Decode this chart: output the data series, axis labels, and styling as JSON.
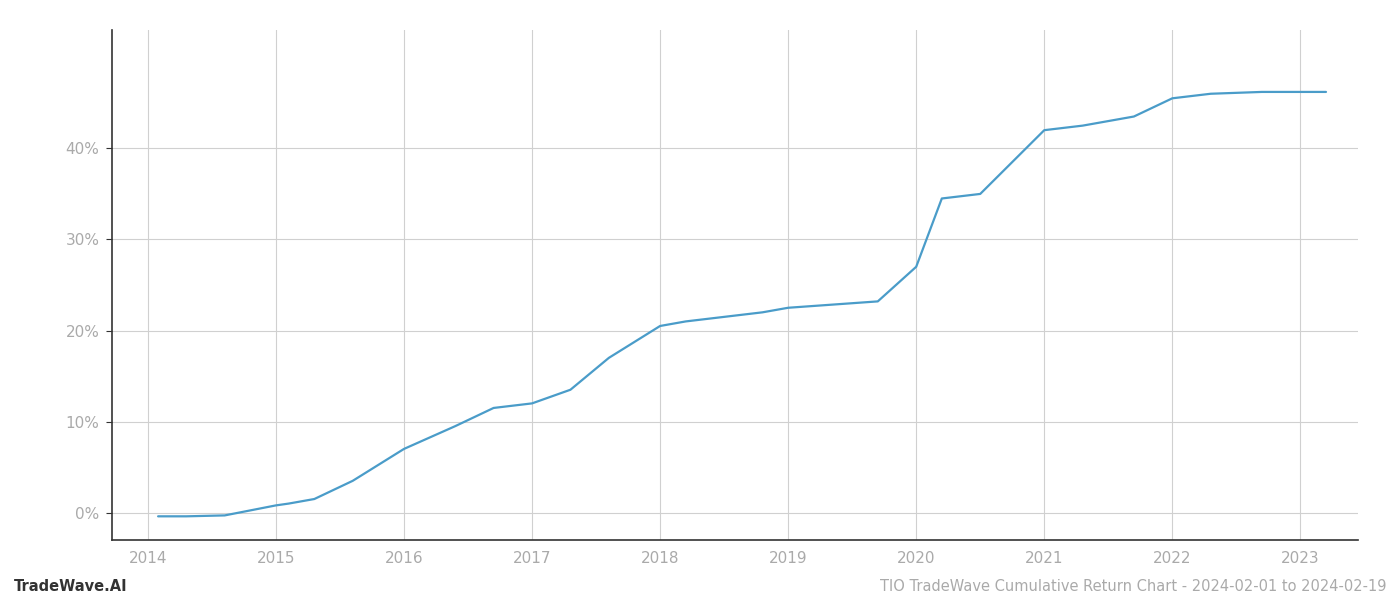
{
  "x_years": [
    2014.08,
    2014.3,
    2014.6,
    2015.0,
    2015.1,
    2015.3,
    2015.6,
    2016.0,
    2016.4,
    2016.7,
    2017.0,
    2017.3,
    2017.6,
    2018.0,
    2018.2,
    2018.5,
    2018.8,
    2019.0,
    2019.3,
    2019.5,
    2019.7,
    2020.0,
    2020.2,
    2020.5,
    2021.0,
    2021.3,
    2021.7,
    2022.0,
    2022.3,
    2022.7,
    2023.0,
    2023.2
  ],
  "y_values": [
    -0.4,
    -0.4,
    -0.3,
    0.8,
    1.0,
    1.5,
    3.5,
    7.0,
    9.5,
    11.5,
    12.0,
    13.5,
    17.0,
    20.5,
    21.0,
    21.5,
    22.0,
    22.5,
    22.8,
    23.0,
    23.2,
    27.0,
    34.5,
    35.0,
    42.0,
    42.5,
    43.5,
    45.5,
    46.0,
    46.2,
    46.2,
    46.2
  ],
  "line_color": "#4a9cc9",
  "line_width": 1.6,
  "background_color": "#ffffff",
  "grid_color": "#d0d0d0",
  "tick_color": "#aaaaaa",
  "ylabel_ticks": [
    0,
    10,
    20,
    30,
    40
  ],
  "ylabel_labels": [
    "0%",
    "10%",
    "20%",
    "30%",
    "40%"
  ],
  "xlim": [
    2013.72,
    2023.45
  ],
  "ylim": [
    -3,
    53
  ],
  "xticks": [
    2014,
    2015,
    2016,
    2017,
    2018,
    2019,
    2020,
    2021,
    2022,
    2023
  ],
  "footer_left": "TradeWave.AI",
  "footer_right": "TIO TradeWave Cumulative Return Chart - 2024-02-01 to 2024-02-19",
  "footer_color": "#aaaaaa",
  "footer_fontsize": 10.5
}
